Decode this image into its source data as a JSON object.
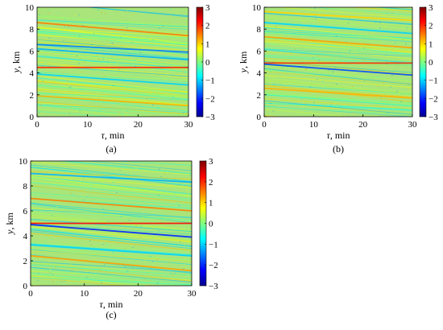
{
  "chart_data": [
    {
      "type": "heatmap",
      "panel_label": "(a)",
      "xlabel_sym": "τ",
      "xlabel_unit": ", min",
      "ylabel_sym": "y",
      "ylabel_unit": ", km",
      "xlim": [
        0,
        30
      ],
      "ylim": [
        0,
        10
      ],
      "x_ticks": [
        0,
        10,
        20,
        30
      ],
      "y_ticks": [
        0,
        2,
        4,
        6,
        8,
        10
      ],
      "colorbar": {
        "range": [
          -3,
          3
        ],
        "ticks": [
          "3",
          "2",
          "1",
          "0",
          "−1",
          "−2",
          "−3"
        ]
      },
      "features": [
        {
          "y0": 4.5,
          "y1": 4.5,
          "value": 2.0
        },
        {
          "y0": 6.6,
          "y1": 5.9,
          "value": -1.5
        },
        {
          "y0": 6.2,
          "y1": 5.2,
          "value": -1.2
        },
        {
          "y0": 8.6,
          "y1": 7.4,
          "value": 1.5
        },
        {
          "y0": 3.9,
          "y1": 2.9,
          "value": -1.0
        },
        {
          "y0": 1.9,
          "y1": 1.0,
          "value": 1.2
        }
      ]
    },
    {
      "type": "heatmap",
      "panel_label": "(b)",
      "xlabel_sym": "τ",
      "xlabel_unit": ", min",
      "ylabel_sym": "y",
      "ylabel_unit": ", km",
      "xlim": [
        0,
        30
      ],
      "ylim": [
        0,
        10
      ],
      "x_ticks": [
        0,
        10,
        20,
        30
      ],
      "y_ticks": [
        0,
        2,
        4,
        6,
        8,
        10
      ],
      "colorbar": {
        "range": [
          -3,
          3
        ],
        "ticks": [
          "3",
          "2",
          "1",
          "0",
          "−1",
          "−2",
          "−3"
        ]
      },
      "features": [
        {
          "y0": 4.9,
          "y1": 4.9,
          "value": 2.0
        },
        {
          "y0": 4.8,
          "y1": 3.8,
          "value": -1.8
        },
        {
          "y0": 7.3,
          "y1": 6.3,
          "value": 1.3
        },
        {
          "y0": 8.6,
          "y1": 7.6,
          "value": -1.0
        },
        {
          "y0": 2.6,
          "y1": 1.7,
          "value": 1.2
        },
        {
          "y0": 9.6,
          "y1": 8.8,
          "value": 1.0
        }
      ]
    },
    {
      "type": "heatmap",
      "panel_label": "(c)",
      "xlabel_sym": "τ",
      "xlabel_unit": ", min",
      "ylabel_sym": "y",
      "ylabel_unit": ", km",
      "xlim": [
        0,
        30
      ],
      "ylim": [
        0,
        10
      ],
      "x_ticks": [
        0,
        10,
        20,
        30
      ],
      "y_ticks": [
        0,
        2,
        4,
        6,
        8,
        10
      ],
      "colorbar": {
        "range": [
          -3,
          3
        ],
        "ticks": [
          "3",
          "2",
          "1",
          "0",
          "−1",
          "−2",
          "−3"
        ]
      },
      "features": [
        {
          "y0": 5.0,
          "y1": 5.0,
          "value": 2.2
        },
        {
          "y0": 4.9,
          "y1": 3.9,
          "value": -2.0
        },
        {
          "y0": 7.0,
          "y1": 6.0,
          "value": 1.5
        },
        {
          "y0": 9.0,
          "y1": 8.3,
          "value": -1.2
        },
        {
          "y0": 2.4,
          "y1": 1.2,
          "value": 1.3
        },
        {
          "y0": 3.3,
          "y1": 2.4,
          "value": -1.0
        }
      ]
    }
  ]
}
